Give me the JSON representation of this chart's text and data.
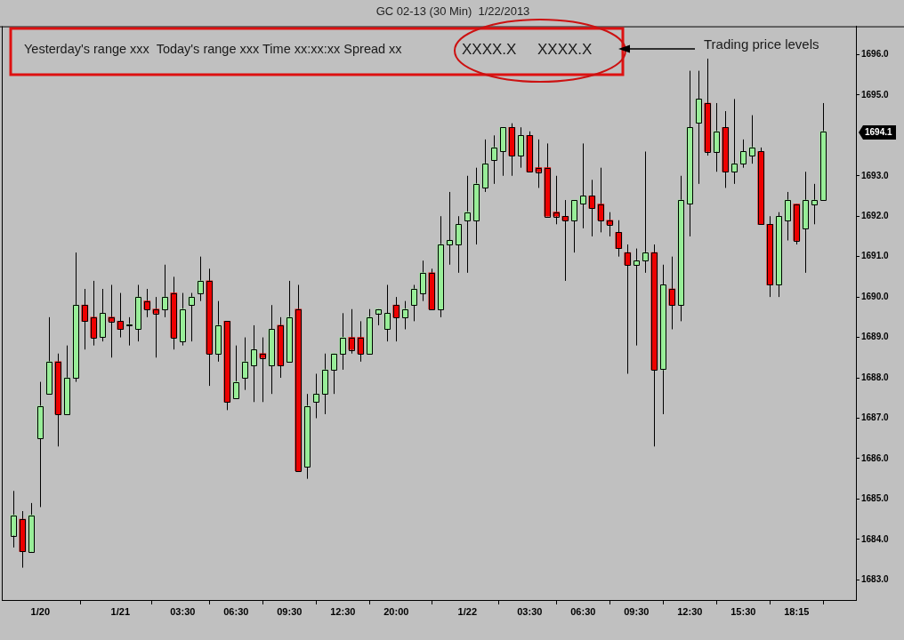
{
  "chart_data": {
    "type": "candlestick",
    "title": "GC 02-13 (30 Min)  1/22/2013",
    "categories": [
      null,
      null,
      null,
      "1/20",
      null,
      null,
      null,
      null,
      null,
      null,
      null,
      null,
      "1/21",
      null,
      null,
      null,
      null,
      null,
      null,
      "03:30",
      null,
      null,
      null,
      null,
      null,
      "06:30",
      null,
      null,
      null,
      null,
      null,
      "09:30",
      null,
      null,
      null,
      null,
      null,
      "12:30",
      null,
      null,
      null,
      null,
      null,
      "20:00",
      null,
      null,
      null,
      null,
      null,
      null,
      null,
      "1/22",
      null,
      null,
      null,
      null,
      null,
      null,
      "03:30",
      null,
      null,
      null,
      null,
      null,
      "06:30",
      null,
      null,
      null,
      null,
      null,
      "09:30",
      null,
      null,
      null,
      null,
      null,
      "12:30",
      null,
      null,
      null,
      null,
      null,
      "15:30",
      null,
      null,
      null,
      null,
      null,
      "18:15",
      null,
      null,
      null
    ],
    "ohlc": [
      [
        1684.1,
        1685.2,
        1683.8,
        1684.6
      ],
      [
        1684.5,
        1684.7,
        1683.3,
        1683.7
      ],
      [
        1683.7,
        1684.9,
        1683.7,
        1684.6
      ],
      [
        1686.5,
        1687.9,
        1684.8,
        1687.3
      ],
      [
        1687.6,
        1689.5,
        1687.6,
        1688.4
      ],
      [
        1688.4,
        1688.6,
        1686.3,
        1687.1
      ],
      [
        1687.1,
        1688.8,
        1687.1,
        1688.0
      ],
      [
        1688.0,
        1691.1,
        1687.9,
        1689.8
      ],
      [
        1689.8,
        1690.2,
        1688.7,
        1689.4
      ],
      [
        1689.5,
        1690.4,
        1688.8,
        1689.0
      ],
      [
        1689.0,
        1690.2,
        1688.9,
        1689.6
      ],
      [
        1689.5,
        1690.3,
        1688.5,
        1689.4
      ],
      [
        1689.4,
        1690.1,
        1689.0,
        1689.2
      ],
      [
        1689.3,
        1689.5,
        1688.8,
        1689.3
      ],
      [
        1689.2,
        1690.3,
        1688.9,
        1690.0
      ],
      [
        1689.9,
        1690.2,
        1689.5,
        1689.7
      ],
      [
        1689.7,
        1690.0,
        1688.5,
        1689.6
      ],
      [
        1689.7,
        1690.8,
        1689.5,
        1690.0
      ],
      [
        1690.1,
        1690.5,
        1688.7,
        1689.0
      ],
      [
        1688.9,
        1690.1,
        1688.8,
        1689.7
      ],
      [
        1689.8,
        1690.1,
        1688.9,
        1690.0
      ],
      [
        1690.1,
        1691.0,
        1689.9,
        1690.4
      ],
      [
        1690.4,
        1690.7,
        1687.8,
        1688.6
      ],
      [
        1688.6,
        1689.9,
        1688.4,
        1689.3
      ],
      [
        1689.4,
        1689.4,
        1687.2,
        1687.4
      ],
      [
        1687.5,
        1688.8,
        1687.5,
        1687.9
      ],
      [
        1688.0,
        1689.0,
        1687.7,
        1688.4
      ],
      [
        1688.3,
        1689.3,
        1687.4,
        1688.7
      ],
      [
        1688.6,
        1689.0,
        1687.4,
        1688.5
      ],
      [
        1688.3,
        1689.8,
        1687.6,
        1689.2
      ],
      [
        1689.3,
        1689.5,
        1688.0,
        1688.3
      ],
      [
        1688.4,
        1690.4,
        1688.4,
        1689.5
      ],
      [
        1689.7,
        1690.3,
        1685.7,
        1685.7
      ],
      [
        1685.8,
        1687.6,
        1685.5,
        1687.3
      ],
      [
        1687.4,
        1688.1,
        1687.0,
        1687.6
      ],
      [
        1687.6,
        1688.6,
        1687.1,
        1688.2
      ],
      [
        1688.2,
        1688.6,
        1687.6,
        1688.6
      ],
      [
        1688.6,
        1689.6,
        1688.2,
        1689.0
      ],
      [
        1689.0,
        1689.7,
        1688.6,
        1688.7
      ],
      [
        1689.0,
        1689.4,
        1688.4,
        1688.6
      ],
      [
        1688.6,
        1689.7,
        1688.6,
        1689.5
      ],
      [
        1689.6,
        1689.7,
        1689.3,
        1689.7
      ],
      [
        1689.2,
        1690.3,
        1688.9,
        1689.6
      ],
      [
        1689.8,
        1690.0,
        1688.9,
        1689.5
      ],
      [
        1689.5,
        1689.9,
        1689.2,
        1689.7
      ],
      [
        1689.8,
        1690.3,
        1689.4,
        1690.2
      ],
      [
        1690.1,
        1690.9,
        1689.9,
        1690.6
      ],
      [
        1690.6,
        1690.7,
        1689.7,
        1689.7
      ],
      [
        1689.7,
        1692.0,
        1689.5,
        1691.3
      ],
      [
        1691.3,
        1692.6,
        1690.8,
        1691.4
      ],
      [
        1691.3,
        1692.0,
        1690.6,
        1691.8
      ],
      [
        1691.9,
        1693.0,
        1690.6,
        1692.1
      ],
      [
        1691.9,
        1693.2,
        1691.3,
        1692.8
      ],
      [
        1692.7,
        1693.9,
        1692.6,
        1693.3
      ],
      [
        1693.4,
        1694.0,
        1692.8,
        1693.7
      ],
      [
        1693.6,
        1694.2,
        1693.0,
        1694.2
      ],
      [
        1694.2,
        1694.3,
        1693.0,
        1693.5
      ],
      [
        1693.5,
        1694.2,
        1693.2,
        1694.0
      ],
      [
        1694.0,
        1694.1,
        1693.1,
        1693.1
      ],
      [
        1693.2,
        1693.9,
        1692.7,
        1693.1
      ],
      [
        1693.2,
        1693.8,
        1692.0,
        1692.0
      ],
      [
        1692.1,
        1693.0,
        1691.8,
        1692.0
      ],
      [
        1692.0,
        1692.4,
        1690.4,
        1691.9
      ],
      [
        1691.9,
        1692.4,
        1691.1,
        1692.4
      ],
      [
        1692.3,
        1693.8,
        1691.7,
        1692.5
      ],
      [
        1692.5,
        1692.9,
        1691.5,
        1692.2
      ],
      [
        1692.3,
        1693.2,
        1691.6,
        1691.9
      ],
      [
        1691.9,
        1692.1,
        1691.5,
        1691.8
      ],
      [
        1691.6,
        1691.9,
        1691.0,
        1691.2
      ],
      [
        1691.1,
        1691.3,
        1688.1,
        1690.8
      ],
      [
        1690.8,
        1691.2,
        1688.8,
        1690.9
      ],
      [
        1690.9,
        1693.6,
        1690.6,
        1691.1
      ],
      [
        1691.1,
        1691.3,
        1686.3,
        1688.2
      ],
      [
        1688.2,
        1690.8,
        1687.1,
        1690.3
      ],
      [
        1690.2,
        1691.0,
        1689.2,
        1689.8
      ],
      [
        1689.8,
        1693.0,
        1689.4,
        1692.4
      ],
      [
        1692.3,
        1695.6,
        1691.5,
        1694.2
      ],
      [
        1694.3,
        1695.6,
        1692.8,
        1694.9
      ],
      [
        1694.8,
        1695.9,
        1693.5,
        1693.6
      ],
      [
        1693.6,
        1694.8,
        1693.1,
        1694.1
      ],
      [
        1694.2,
        1694.6,
        1692.7,
        1693.1
      ],
      [
        1693.1,
        1694.9,
        1692.8,
        1693.3
      ],
      [
        1693.3,
        1693.9,
        1693.2,
        1693.6
      ],
      [
        1693.5,
        1694.5,
        1693.3,
        1693.7
      ],
      [
        1693.6,
        1693.7,
        1691.8,
        1691.8
      ],
      [
        1691.8,
        1692.0,
        1690.0,
        1690.3
      ],
      [
        1690.3,
        1692.1,
        1690.0,
        1692.0
      ],
      [
        1691.9,
        1692.6,
        1691.4,
        1692.4
      ],
      [
        1692.3,
        1692.3,
        1691.3,
        1691.4
      ],
      [
        1691.7,
        1693.1,
        1690.6,
        1692.4
      ],
      [
        1692.3,
        1692.8,
        1691.8,
        1692.4
      ],
      [
        1692.4,
        1694.8,
        1692.4,
        1694.1
      ]
    ],
    "colors": [
      "#98ee98",
      "#ee0000",
      "#98ee98",
      "#98ee98",
      "#98ee98",
      "#ee0000",
      "#98ee98",
      "#98ee98",
      "#ee0000",
      "#ee0000",
      "#98ee98",
      "#ee0000",
      "#ee0000",
      "#98ee98",
      "#98ee98",
      "#ee0000",
      "#ee0000",
      "#98ee98",
      "#ee0000",
      "#98ee98",
      "#98ee98",
      "#98ee98",
      "#ee0000",
      "#98ee98",
      "#ee0000",
      "#98ee98",
      "#98ee98",
      "#98ee98",
      "#ee0000",
      "#98ee98",
      "#ee0000",
      "#98ee98",
      "#ee0000",
      "#98ee98",
      "#98ee98",
      "#98ee98",
      "#98ee98",
      "#98ee98",
      "#ee0000",
      "#ee0000",
      "#98ee98",
      "#98ee98",
      "#98ee98",
      "#ee0000",
      "#98ee98",
      "#98ee98",
      "#98ee98",
      "#ee0000",
      "#98ee98",
      "#98ee98",
      "#98ee98",
      "#98ee98",
      "#98ee98",
      "#98ee98",
      "#98ee98",
      "#98ee98",
      "#ee0000",
      "#98ee98",
      "#ee0000",
      "#ee0000",
      "#ee0000",
      "#ee0000",
      "#ee0000",
      "#98ee98",
      "#98ee98",
      "#ee0000",
      "#ee0000",
      "#ee0000",
      "#ee0000",
      "#ee0000",
      "#98ee98",
      "#98ee98",
      "#ee0000",
      "#98ee98",
      "#ee0000",
      "#98ee98",
      "#98ee98",
      "#98ee98",
      "#ee0000",
      "#98ee98",
      "#ee0000",
      "#98ee98",
      "#98ee98",
      "#98ee98",
      "#ee0000",
      "#ee0000",
      "#98ee98",
      "#98ee98",
      "#ee0000",
      "#98ee98",
      "#98ee98",
      "#98ee98"
    ],
    "ylim": [
      1682.5,
      1696.7
    ],
    "yticks": [
      {
        "value": 1683,
        "label": "1683.0"
      },
      {
        "value": 1684,
        "label": "1684.0"
      },
      {
        "value": 1685,
        "label": "1685.0"
      },
      {
        "value": 1686,
        "label": "1686.0"
      },
      {
        "value": 1687,
        "label": "1687.0"
      },
      {
        "value": 1688,
        "label": "1688.0"
      },
      {
        "value": 1689,
        "label": "1689.0"
      },
      {
        "value": 1690,
        "label": "1690.0"
      },
      {
        "value": 1691,
        "label": "1691.0"
      },
      {
        "value": 1692,
        "label": "1692.0"
      },
      {
        "value": 1693,
        "label": "1693.0"
      },
      {
        "value": 1695,
        "label": "1695.0"
      },
      {
        "value": 1696,
        "label": "1696.0"
      }
    ],
    "annotations": [
      "Yesterday's range xxx  Today's range xxx Time xx:xx:xx Spread xx",
      "XXXX.X",
      "XXXX.X",
      "Trading price levels",
      "1694.1"
    ]
  }
}
